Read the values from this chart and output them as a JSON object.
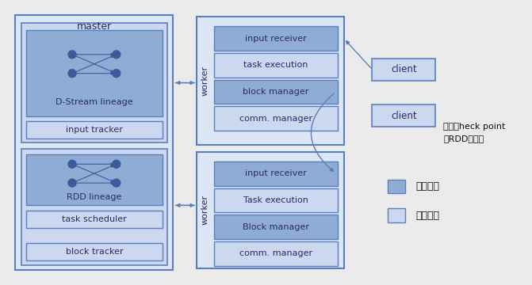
{
  "bg_color": "#ebebeb",
  "border_color": "#5b7fbd",
  "dark_blue_fill": "#8fadd4",
  "light_blue_fill": "#ccd8ef",
  "master_outer_fill": "#dce6f5",
  "worker_outer_fill": "#dce6f5",
  "client_fill": "#b8cceb",
  "title_master": "master",
  "label_dstream": "D-Stream lineage",
  "label_input_tracker": "input tracker",
  "label_rdd_lineage": "RDD lineage",
  "label_task_scheduler": "task scheduler",
  "label_block_tracker": "block tracker",
  "worker_top_labels": [
    "input receiver",
    "task execution",
    "block manager",
    "comm. manager"
  ],
  "worker_bot_labels": [
    "input receiver",
    "Task execution",
    "Block manager",
    "comm. manager"
  ],
  "worker_top_dark": [
    true,
    false,
    true,
    false
  ],
  "worker_bot_dark": [
    true,
    false,
    true,
    false
  ],
  "client_labels": [
    "client",
    "client"
  ],
  "legend_new": "新增组件",
  "legend_modified": "修改组件",
  "annotation_line1": "输入双heck point",
  "annotation_line2": "的RDD的副本",
  "text_color": "#2a2a6a",
  "worker_label": "worker",
  "node_color": "#3a5a9c",
  "arrow_color": "#5b7fbd"
}
